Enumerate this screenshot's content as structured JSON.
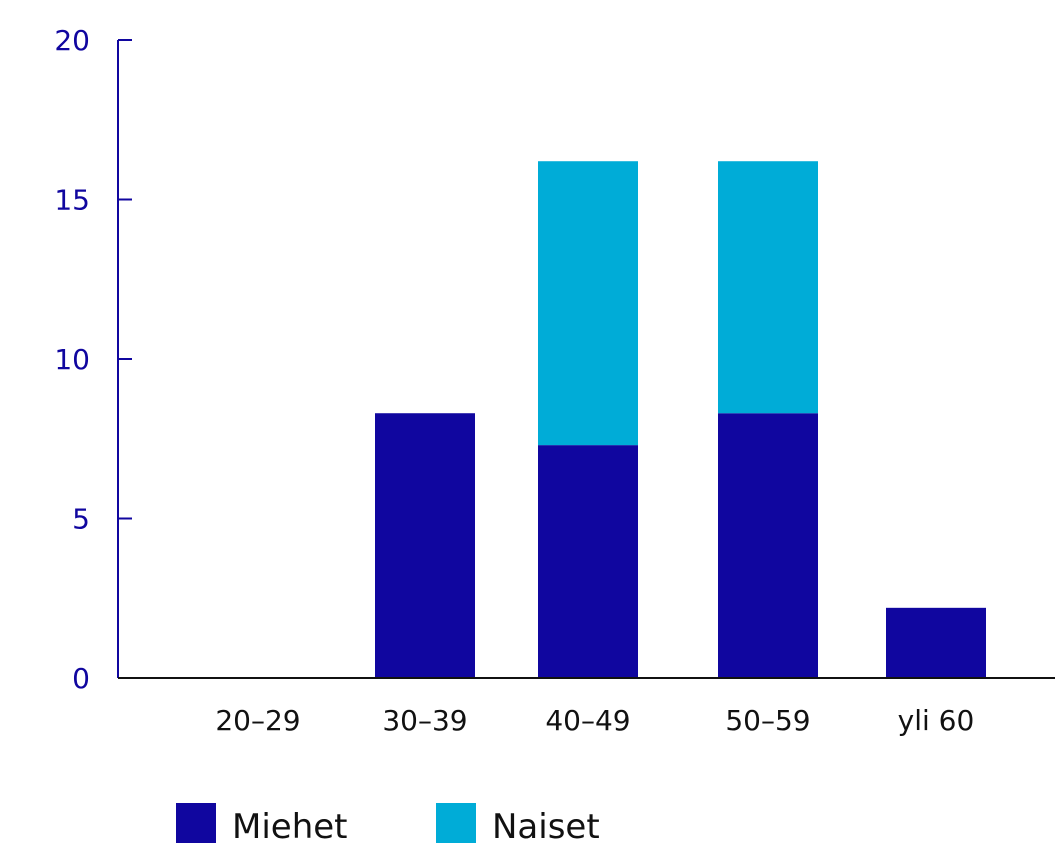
{
  "chart_data": {
    "type": "bar",
    "stacked": true,
    "categories": [
      "20–29",
      "30–39",
      "40–49",
      "50–59",
      "yli 60"
    ],
    "series": [
      {
        "name": "Miehet",
        "values": [
          0,
          8.3,
          7.3,
          8.3,
          2.2
        ],
        "color": "#10069f"
      },
      {
        "name": "Naiset",
        "values": [
          0,
          0,
          8.9,
          7.9,
          0
        ],
        "color": "#00acd7"
      }
    ],
    "title": "",
    "xlabel": "",
    "ylabel": "",
    "ylim": [
      0,
      20
    ],
    "yticks": [
      0,
      5,
      10,
      15,
      20
    ],
    "grid": false,
    "legend_position": "bottom-left",
    "colors": {
      "axis": "#10069f",
      "tick_text": "#10069f",
      "category_text": "#111111"
    }
  }
}
